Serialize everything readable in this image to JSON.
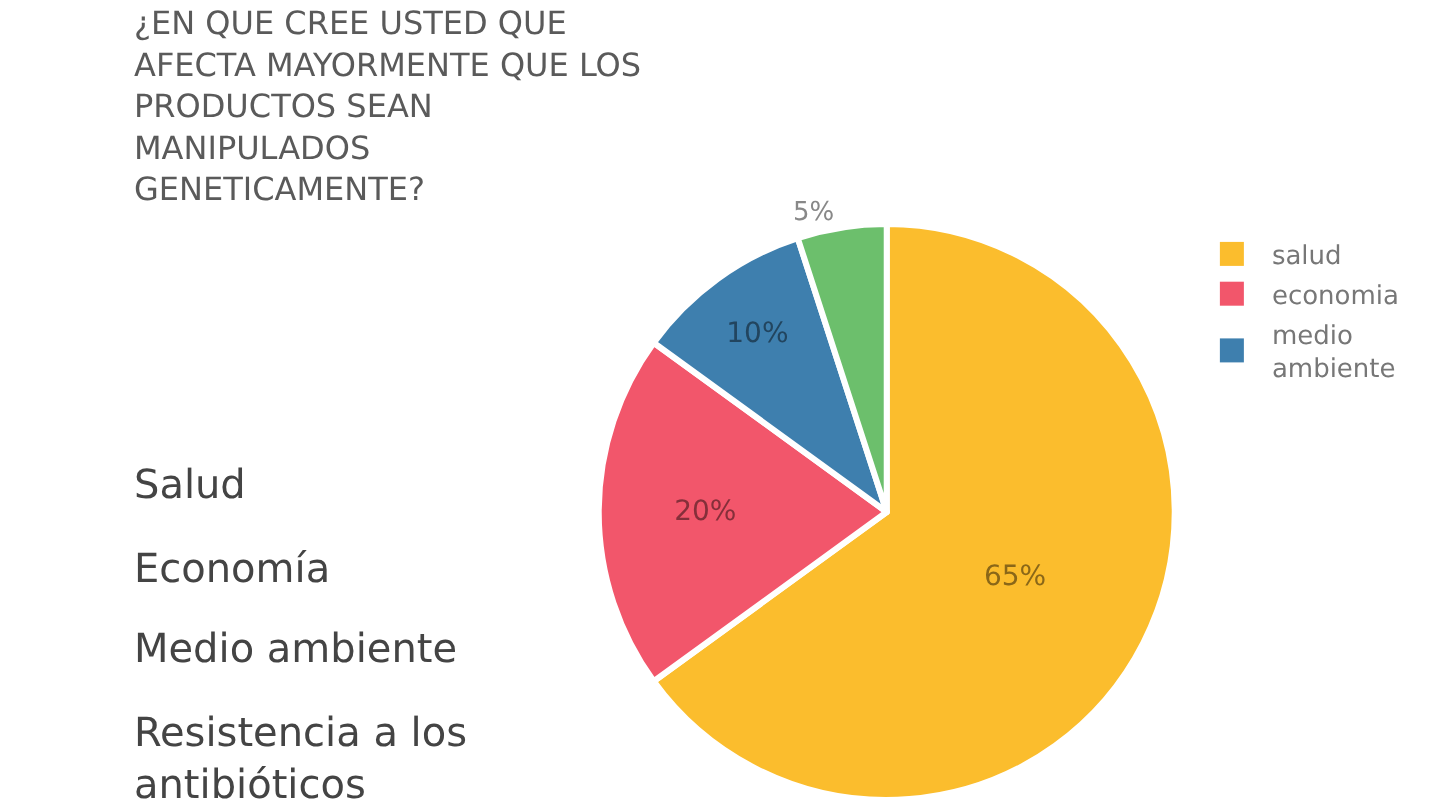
{
  "chart_data": {
    "type": "pie",
    "title": "¿EN QUE CREE USTED QUE\nAFECTA MAYORMENTE QUE LOS\nPRODUCTOS SEAN\nMANIPULADOS\nGENETICAMENTE?",
    "categories": [
      "salud",
      "economia",
      "medio\nambiente",
      null
    ],
    "values": [
      65,
      20,
      10,
      5
    ],
    "value_labels": [
      "65%",
      "20%",
      "10%",
      "5%"
    ],
    "colors": [
      "#fbbd2d",
      "#f2566b",
      "#3e7fae",
      "#6cbf6c"
    ],
    "legend": "right",
    "annotations": [
      "Salud",
      "Economía",
      "Medio ambiente",
      "Resistencia a los\nantibióticos"
    ]
  }
}
